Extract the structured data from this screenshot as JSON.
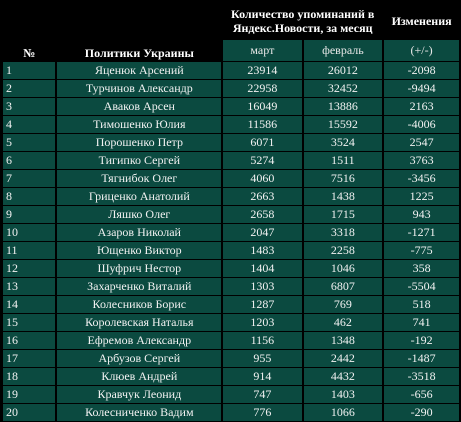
{
  "headers": {
    "num": "№",
    "politicians": "Политики Украины",
    "mentions": "Количество упоминаний в Яндекс.Новости, за месяц",
    "changes": "Изменения",
    "march": "март",
    "february": "февраль",
    "change_unit": "(+/-)"
  },
  "rows": [
    {
      "num": "1",
      "name": "Яценюк Арсений",
      "march": "23914",
      "february": "26012",
      "change": "-2098"
    },
    {
      "num": "2",
      "name": "Турчинов Александр",
      "march": "22958",
      "february": "32452",
      "change": "-9494"
    },
    {
      "num": "3",
      "name": "Аваков Арсен",
      "march": "16049",
      "february": "13886",
      "change": "2163"
    },
    {
      "num": "4",
      "name": "Тимошенко Юлия",
      "march": "11586",
      "february": "15592",
      "change": "-4006"
    },
    {
      "num": "5",
      "name": "Порошенко Петр",
      "march": "6071",
      "february": "3524",
      "change": "2547"
    },
    {
      "num": "6",
      "name": "Тигипко Сергей",
      "march": "5274",
      "february": "1511",
      "change": "3763"
    },
    {
      "num": "7",
      "name": "Тягнибок Олег",
      "march": "4060",
      "february": "7516",
      "change": "-3456"
    },
    {
      "num": "8",
      "name": "Гриценко Анатолий",
      "march": "2663",
      "february": "1438",
      "change": "1225"
    },
    {
      "num": "9",
      "name": "Ляшко Олег",
      "march": "2658",
      "february": "1715",
      "change": "943"
    },
    {
      "num": "10",
      "name": "Азаров Николай",
      "march": "2047",
      "february": "3318",
      "change": "-1271"
    },
    {
      "num": "11",
      "name": "Ющенко Виктор",
      "march": "1483",
      "february": "2258",
      "change": "-775"
    },
    {
      "num": "12",
      "name": "Шуфрич Нестор",
      "march": "1404",
      "february": "1046",
      "change": "358"
    },
    {
      "num": "13",
      "name": "Захарченко Виталий",
      "march": "1303",
      "february": "6807",
      "change": "-5504"
    },
    {
      "num": "14",
      "name": "Колесников Борис",
      "march": "1287",
      "february": "769",
      "change": "518"
    },
    {
      "num": "15",
      "name": "Королевская Наталья",
      "march": "1203",
      "february": "462",
      "change": "741"
    },
    {
      "num": "16",
      "name": "Ефремов Александр",
      "march": "1156",
      "february": "1348",
      "change": "-192"
    },
    {
      "num": "17",
      "name": "Арбузов Сергей",
      "march": "955",
      "february": "2442",
      "change": "-1487"
    },
    {
      "num": "18",
      "name": "Клюев Андрей",
      "march": "914",
      "february": "4432",
      "change": "-3518"
    },
    {
      "num": "19",
      "name": "Кравчук Леонид",
      "march": "747",
      "february": "1403",
      "change": "-656"
    },
    {
      "num": "20",
      "name": "Колесниченко Вадим",
      "march": "776",
      "february": "1066",
      "change": "-290"
    }
  ],
  "colors": {
    "background": "#000000",
    "cell": "#0b4a40",
    "text": "#f2f2f2"
  }
}
